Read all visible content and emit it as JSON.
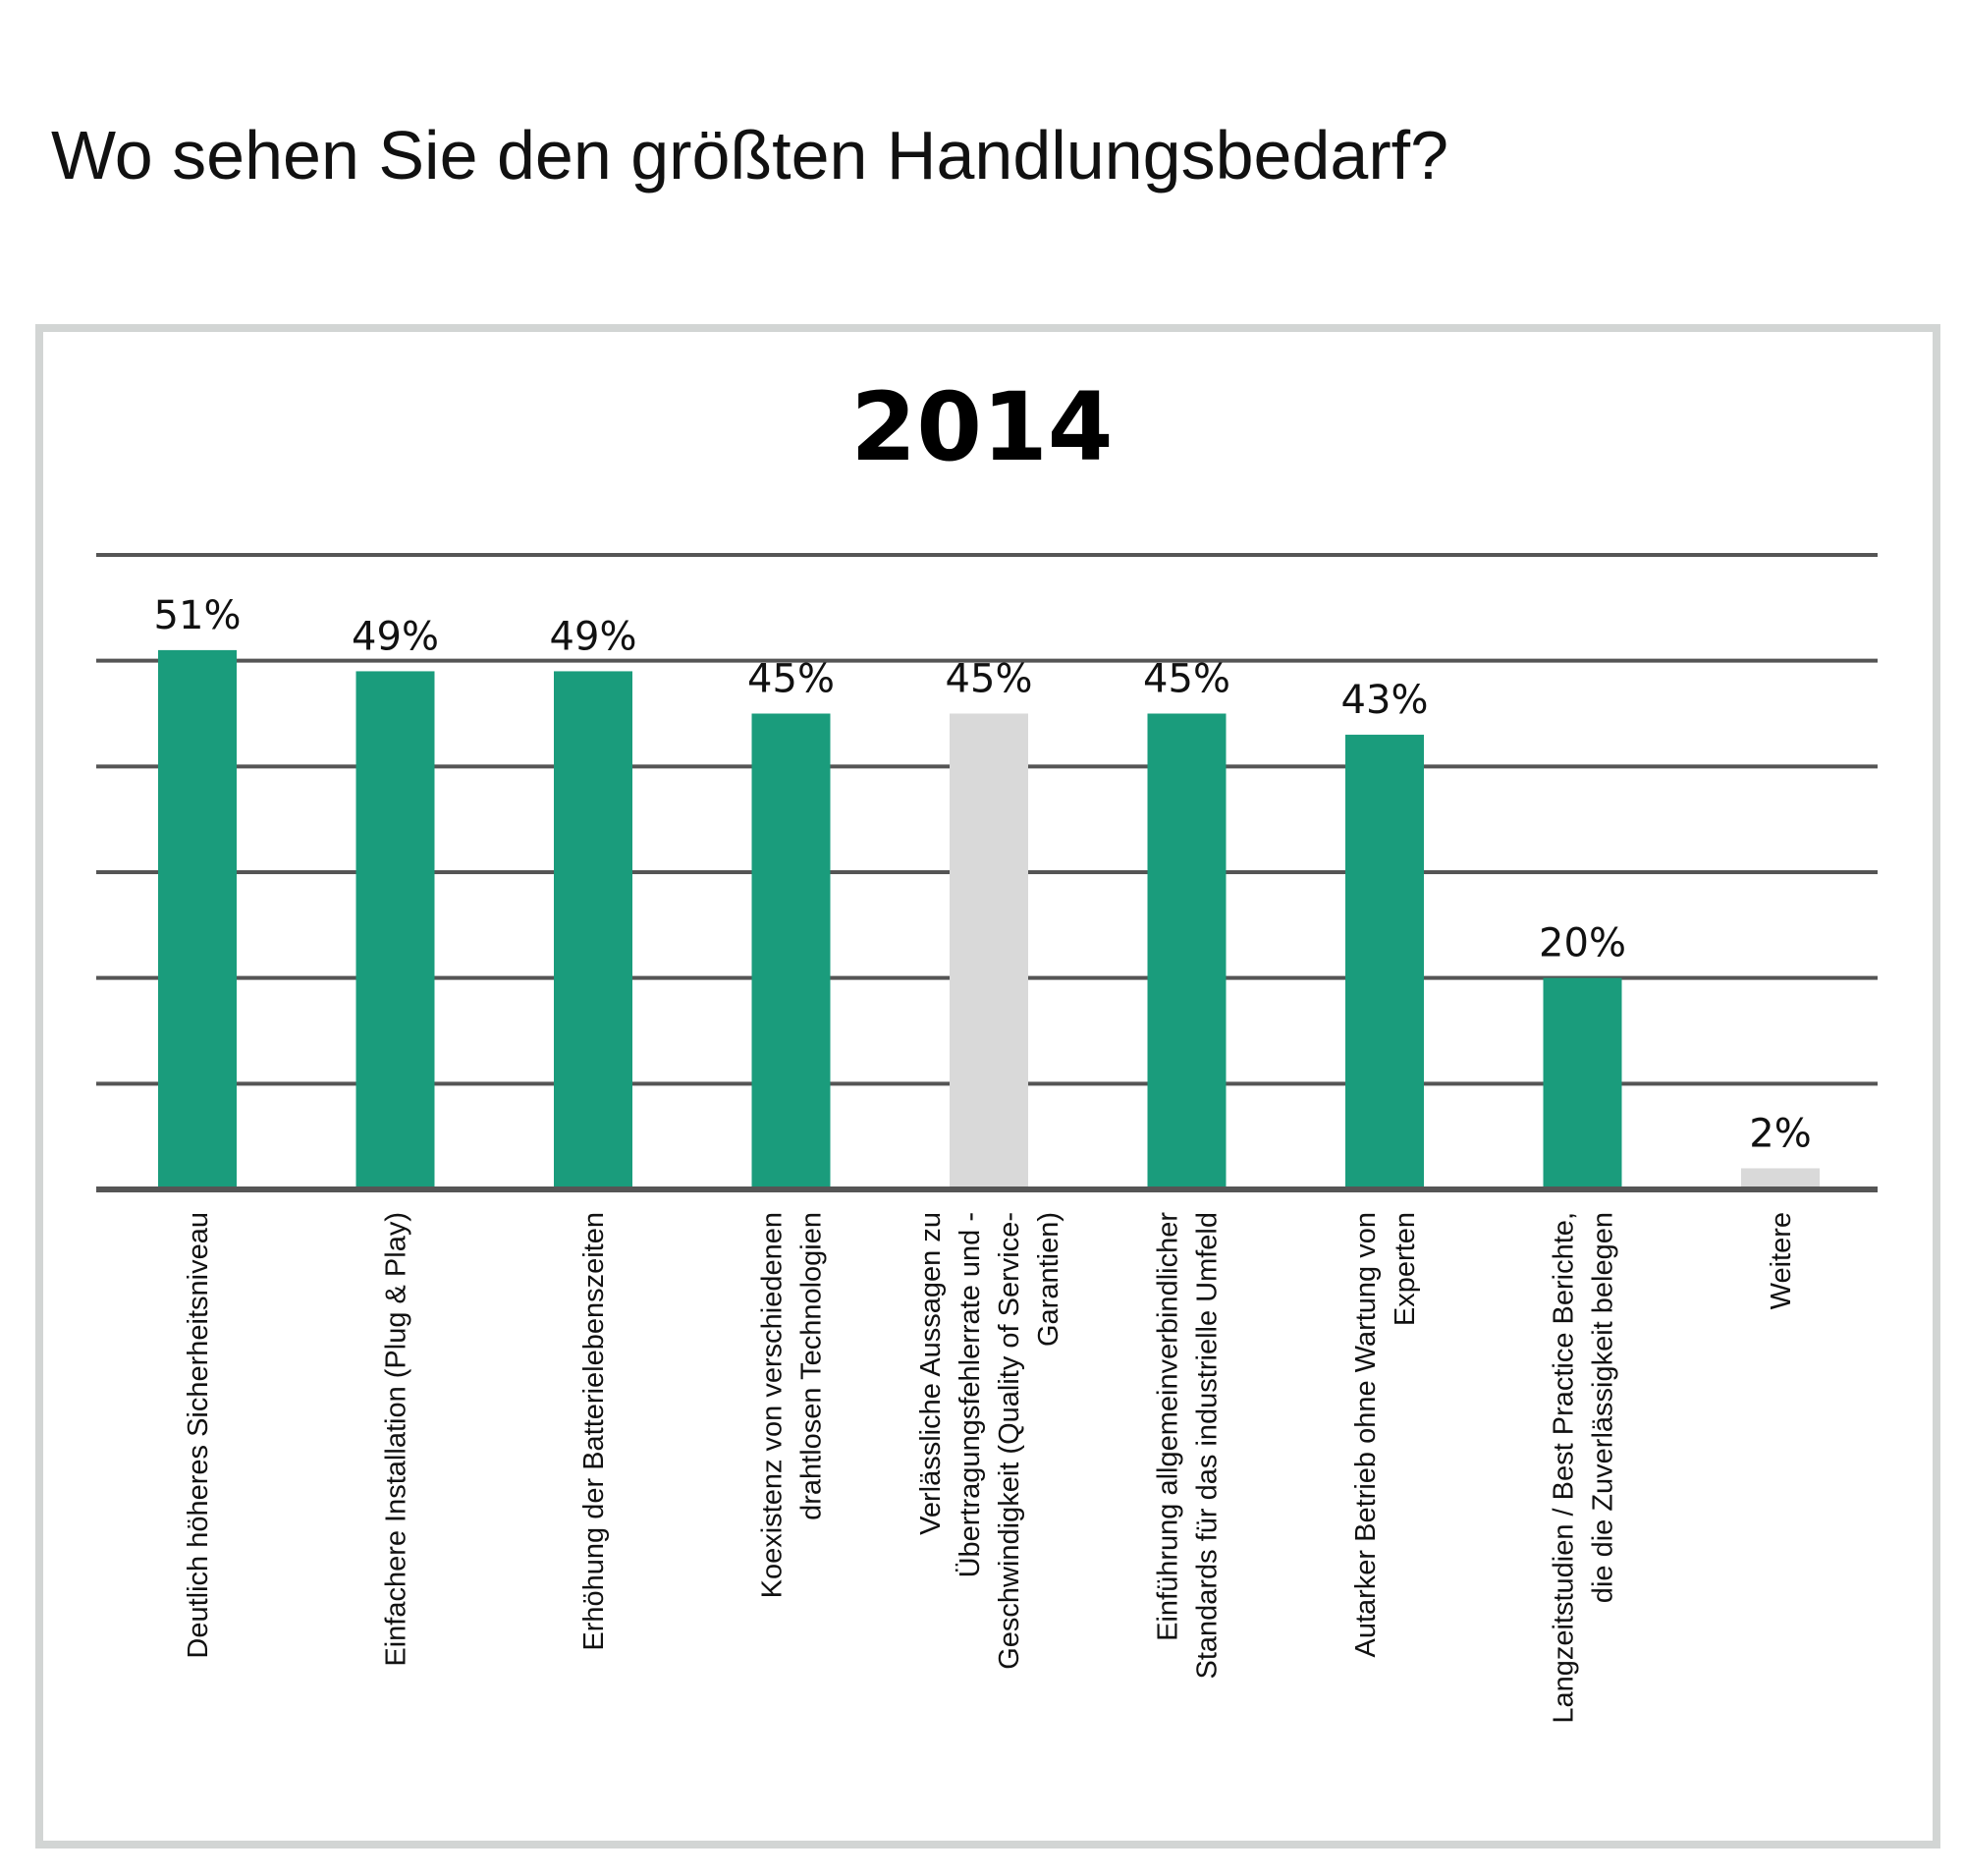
{
  "heading": "Wo sehen Sie den größten Handlungsbedarf?",
  "chart_data": {
    "type": "bar",
    "title": "2014",
    "categories": [
      [
        "Deutlich höheres Sicherheitsniveau"
      ],
      [
        "Einfachere Installation (Plug & Play)"
      ],
      [
        "Erhöhung der Batterielebenszeiten"
      ],
      [
        "Koexistenz von verschiedenen",
        "drahtlosen Technologien"
      ],
      [
        "Verlässliche Aussagen zu",
        "Übertragungsfehlerrate und -",
        "Geschwindigkeit (Quality of Service-",
        "Garantien)"
      ],
      [
        "Einführung allgemeinverbindlicher",
        "Standards für das industrielle Umfeld"
      ],
      [
        "Autarker Betrieb ohne Wartung von",
        "Experten"
      ],
      [
        "Langzeitstudien / Best Practice Berichte,",
        "die die Zuverlässigkeit belegen"
      ],
      [
        "Weitere"
      ]
    ],
    "values": [
      51,
      49,
      49,
      45,
      45,
      45,
      43,
      20,
      2
    ],
    "value_labels": [
      "51%",
      "49%",
      "49%",
      "45%",
      "45%",
      "45%",
      "43%",
      "20%",
      "2%"
    ],
    "bar_colors": [
      "#1a9c7c",
      "#1a9c7c",
      "#1a9c7c",
      "#1a9c7c",
      "#d9d9d9",
      "#1a9c7c",
      "#1a9c7c",
      "#1a9c7c",
      "#d9d9d9"
    ],
    "ylim": [
      0,
      60
    ],
    "grid": true,
    "gridline_color": "#555555"
  }
}
